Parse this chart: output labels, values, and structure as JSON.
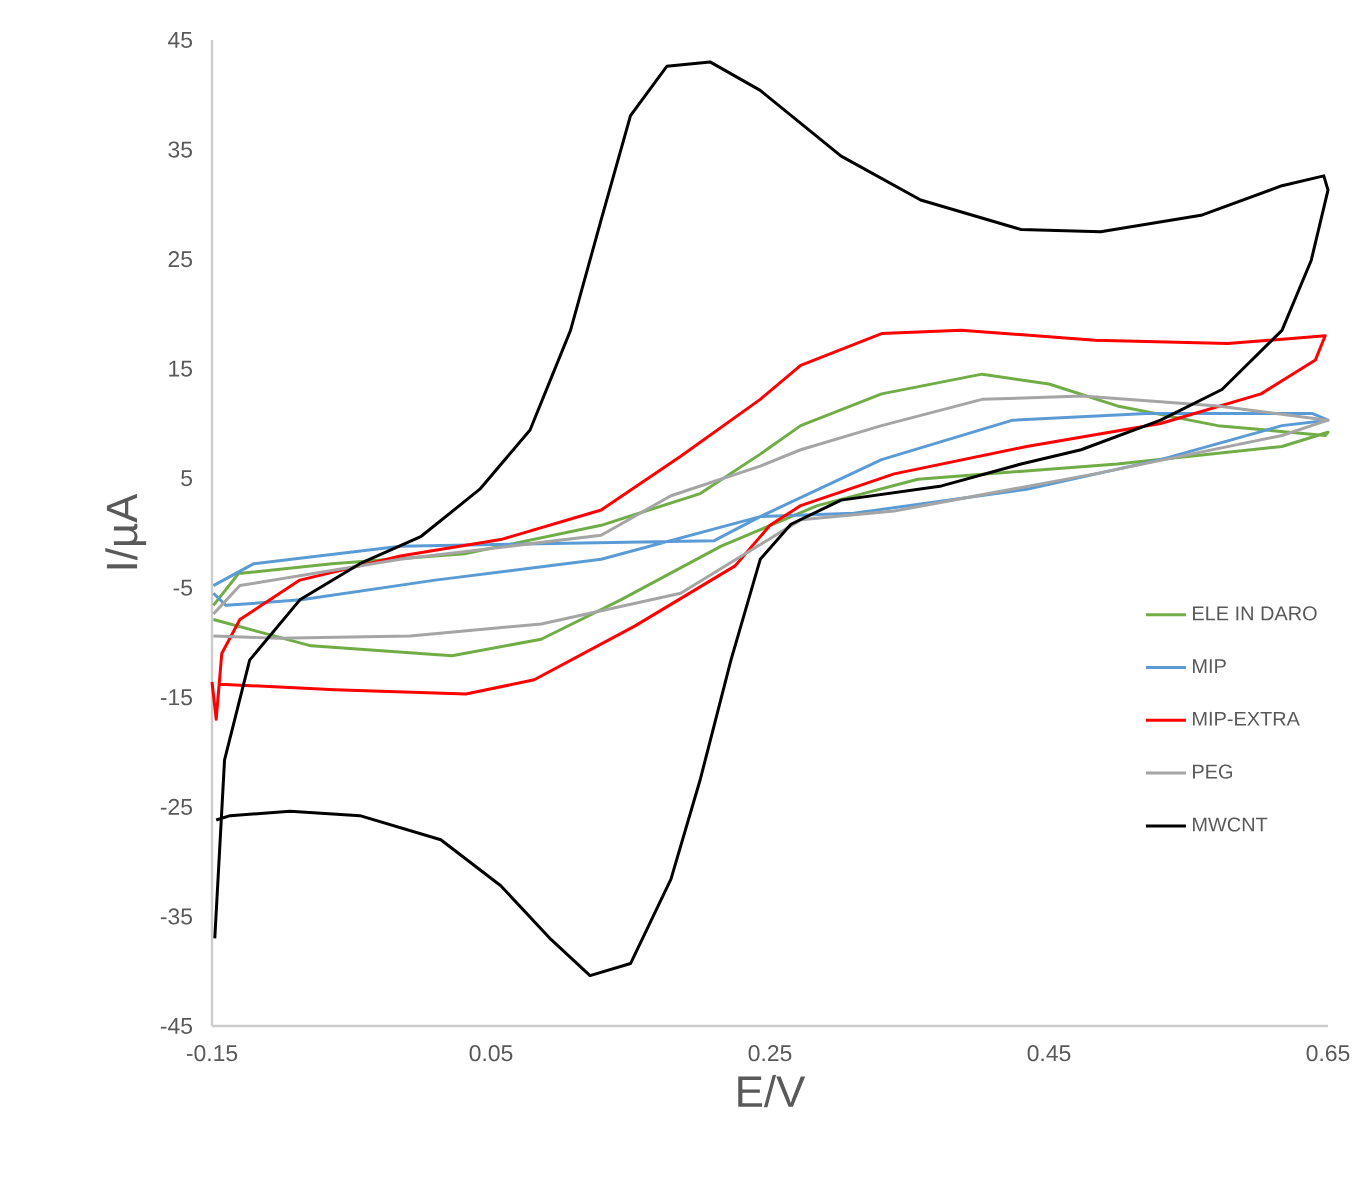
{
  "chart_data": {
    "type": "line",
    "xlabel": "E/V",
    "ylabel": "I/µA",
    "xlim": [
      -0.15,
      0.65
    ],
    "ylim": [
      -45,
      45
    ],
    "xticks": [
      -0.15,
      0.05,
      0.25,
      0.45,
      0.65
    ],
    "yticks": [
      -45,
      -35,
      -25,
      -15,
      -5,
      5,
      15,
      25,
      35,
      45
    ],
    "legend": "right",
    "grid": false,
    "marker": "none",
    "line_style": "solid",
    "series": [
      {
        "name": "ELE IN DARO",
        "color": "#70ad47",
        "x": [
          -0.149,
          -0.131,
          -0.064,
          0.031,
          0.129,
          0.2,
          0.243,
          0.272,
          0.33,
          0.402,
          0.45,
          0.499,
          0.571,
          0.648,
          0.65,
          0.617,
          0.499,
          0.356,
          0.284,
          0.215,
          0.143,
          0.086,
          0.022,
          -0.079,
          -0.149
        ],
        "values": [
          -6.6,
          -3.7,
          -2.8,
          -1.9,
          0.7,
          3.6,
          7.2,
          9.8,
          12.7,
          14.5,
          13.6,
          11.6,
          9.8,
          8.9,
          9.2,
          7.9,
          6.3,
          4.9,
          2.5,
          -1.2,
          -6.1,
          -9.7,
          -11.2,
          -10.3,
          -7.9
        ]
      },
      {
        "name": "MIP",
        "color": "#5b9bd5",
        "x": [
          -0.149,
          -0.12,
          -0.015,
          0.074,
          0.21,
          0.243,
          0.33,
          0.424,
          0.52,
          0.639,
          0.65,
          0.617,
          0.53,
          0.434,
          0.31,
          0.243,
          0.129,
          0.01,
          -0.086,
          -0.14,
          -0.149
        ],
        "values": [
          -4.8,
          -2.8,
          -1.2,
          -1.0,
          -0.7,
          1.5,
          6.7,
          10.3,
          10.9,
          10.9,
          10.3,
          9.8,
          6.7,
          4.0,
          1.8,
          1.5,
          -2.4,
          -4.3,
          -6.1,
          -6.6,
          -5.5
        ]
      },
      {
        "name": "MIP-EXTRA",
        "color": "#ff0000",
        "x": [
          -0.15,
          -0.147,
          -0.143,
          -0.13,
          -0.087,
          -0.015,
          0.057,
          0.129,
          0.186,
          0.243,
          0.272,
          0.33,
          0.387,
          0.483,
          0.578,
          0.648,
          0.641,
          0.602,
          0.53,
          0.434,
          0.339,
          0.272,
          0.25,
          0.225,
          0.153,
          0.081,
          0.032,
          -0.062,
          -0.144
        ],
        "values": [
          -13.6,
          -17,
          -11,
          -7.9,
          -4.3,
          -2.1,
          -0.6,
          2.1,
          7.0,
          12.2,
          15.3,
          18.2,
          18.5,
          17.6,
          17.3,
          18.0,
          15.8,
          12.7,
          10.0,
          7.9,
          5.4,
          2.5,
          0.7,
          -3.0,
          -8.5,
          -13.4,
          -14.7,
          -14.3,
          -13.8
        ]
      },
      {
        "name": "PEG",
        "color": "#a5a5a5",
        "x": [
          -0.149,
          -0.13,
          -0.015,
          0.129,
          0.179,
          0.243,
          0.272,
          0.33,
          0.402,
          0.474,
          0.571,
          0.65,
          0.617,
          0.483,
          0.339,
          0.272,
          0.186,
          0.086,
          -0.008,
          -0.103,
          -0.149
        ],
        "values": [
          -7.4,
          -4.8,
          -2.4,
          -0.2,
          3.4,
          6.1,
          7.6,
          9.8,
          12.2,
          12.5,
          11.6,
          10.3,
          8.9,
          5.4,
          2.0,
          1.2,
          -5.5,
          -8.3,
          -9.4,
          -9.6,
          -9.4
        ]
      },
      {
        "name": "MWCNT",
        "color": "#000000",
        "x": [
          -0.148,
          -0.141,
          -0.123,
          -0.087,
          -0.044,
          0.0,
          0.042,
          0.078,
          0.107,
          0.129,
          0.15,
          0.176,
          0.207,
          0.243,
          0.301,
          0.358,
          0.43,
          0.487,
          0.559,
          0.617,
          0.647,
          0.65,
          0.638,
          0.617,
          0.574,
          0.53,
          0.473,
          0.43,
          0.373,
          0.301,
          0.265,
          0.243,
          0.222,
          0.2,
          0.179,
          0.15,
          0.121,
          0.093,
          0.057,
          0.014,
          -0.044,
          -0.094,
          -0.137,
          -0.147
        ],
        "values": [
          -37,
          -20.7,
          -11.6,
          -6.1,
          -2.8,
          -0.3,
          4.0,
          9.4,
          18.5,
          28.6,
          38.1,
          42.6,
          43.0,
          40.4,
          34.4,
          30.4,
          27.7,
          27.5,
          29.0,
          31.7,
          32.6,
          31.3,
          24.9,
          18.5,
          13.1,
          10.3,
          7.6,
          6.3,
          4.3,
          3.0,
          0.8,
          -2.4,
          -11.6,
          -22.5,
          -31.6,
          -39.3,
          -40.4,
          -37.1,
          -32.2,
          -28.0,
          -25.8,
          -25.4,
          -25.8,
          -26.2
        ]
      }
    ]
  }
}
